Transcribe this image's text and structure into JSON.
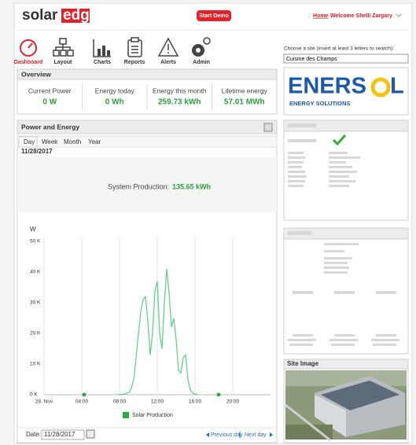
{
  "header": {
    "logo_left": "solar",
    "logo_right": "edge",
    "demo_button": "Start Demo",
    "home_link": "Home",
    "welcome": "Welcome Shelli Zargary"
  },
  "nav": [
    "Dashboard",
    "Layout",
    "Charts",
    "Reports",
    "Alerts",
    "Admin"
  ],
  "overview": {
    "title": "Overview",
    "items": [
      {
        "label": "Current Power",
        "value": "0 W"
      },
      {
        "label": "Energy today",
        "value": "0 Wh"
      },
      {
        "label": "Energy this month",
        "value": "259.73 kWh"
      },
      {
        "label": "Lifetime energy",
        "value": "57.01 MWh"
      }
    ]
  },
  "panel": {
    "title": "Power and Energy",
    "tabs": [
      "Day",
      "Week",
      "Month",
      "Year"
    ],
    "date": "11/28/2017",
    "production_label": "System Production:",
    "production_value": "135.65 kWh",
    "date_label": "Date:",
    "date_input": "11/28/2017",
    "previous_day": "Previous day",
    "next_day": "Next day"
  },
  "chart_data": {
    "type": "line",
    "y_label": "W",
    "x": [
      4.25,
      6,
      7.75,
      8.5,
      9,
      9.25,
      9.5,
      9.75,
      10,
      10.25,
      10.5,
      10.75,
      11,
      11.25,
      11.5,
      11.75,
      12,
      12.25,
      12.5,
      12.75,
      13,
      13.25,
      13.5,
      13.75,
      14,
      14.25,
      14.5,
      14.75,
      15,
      15.25,
      15.5,
      15.75,
      16.25,
      17.5,
      18.5
    ],
    "series": [
      {
        "name": "Solar Production",
        "color": "#66cf92",
        "values": [
          0,
          null,
          0,
          200,
          700,
          2000,
          5000,
          12000,
          20000,
          27000,
          31000,
          32000,
          24000,
          13000,
          20000,
          34000,
          37000,
          20000,
          15000,
          30000,
          41000,
          33000,
          22000,
          25000,
          18000,
          8000,
          7000,
          12000,
          13000,
          5000,
          1500,
          500,
          0,
          null,
          0
        ]
      }
    ],
    "marker_color": "#2aa84a",
    "xlim": [
      0,
      24
    ],
    "xticks": [
      {
        "value": 0,
        "label": "28. Nov"
      },
      {
        "value": 4,
        "label": "04:00"
      },
      {
        "value": 8,
        "label": "08:00"
      },
      {
        "value": 12,
        "label": "12:00"
      },
      {
        "value": 16,
        "label": "16:00"
      },
      {
        "value": 20,
        "label": "20:00"
      }
    ],
    "ylim": [
      0,
      50000
    ],
    "yticks": [
      {
        "value": 0,
        "label": "0 K"
      },
      {
        "value": 10000,
        "label": "10 K"
      },
      {
        "value": 20000,
        "label": "20 K"
      },
      {
        "value": 30000,
        "label": "30 K"
      },
      {
        "value": 40000,
        "label": "40 K"
      },
      {
        "value": 50000,
        "label": "50 K"
      }
    ],
    "grid": true
  },
  "site_picker": {
    "prompt": "Choose a site (insert at least 3 letters to search):",
    "value": "Cuisine des Champs"
  },
  "brand": {
    "name_left": "ENERS",
    "name_right": "L",
    "tagline": "ENERGY SOLUTIONS"
  },
  "site_image": {
    "title": "Site Image"
  }
}
